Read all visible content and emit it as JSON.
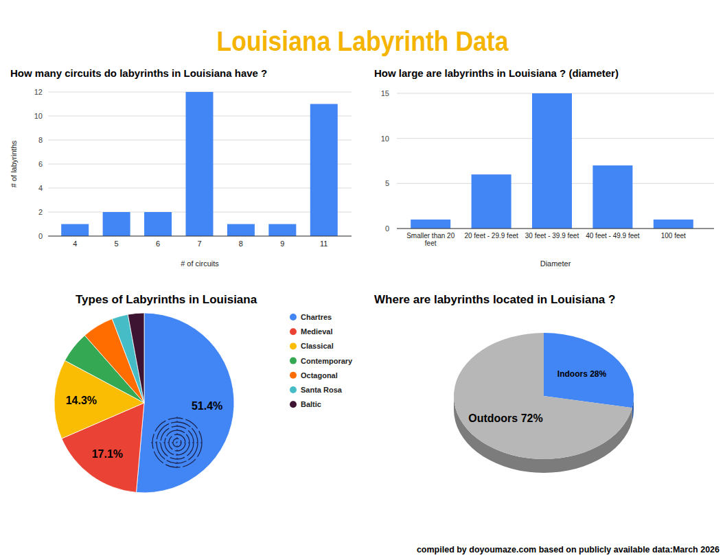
{
  "header": {
    "title": "Louisiana Labyrinth Data"
  },
  "footer": {
    "text": "compiled by doyoumaze.com based on publicly available data:March 2026"
  },
  "chart_data": [
    {
      "type": "bar",
      "title": "How many circuits do labyrinths in Louisiana have ?",
      "x_label": "# of circuits",
      "y_label": "# of labyrinths",
      "categories": [
        "4",
        "5",
        "6",
        "7",
        "8",
        "9",
        "11"
      ],
      "values": [
        1,
        2,
        2,
        12,
        1,
        1,
        11
      ],
      "color": "#4285f4",
      "ylim": [
        0,
        12
      ],
      "yticks": [
        0,
        2,
        4,
        6,
        8,
        10,
        12
      ],
      "grid": true
    },
    {
      "type": "bar",
      "title": "How large are labyrinths in Louisiana ? (diameter)",
      "x_label": "Diameter",
      "categories": [
        "Smaller than 20 feet",
        "20 feet - 29.9 feet",
        "30 feet - 39.9 feet",
        "40 feet - 49.9 feet",
        "100 feet"
      ],
      "values": [
        1,
        6,
        15,
        7,
        1
      ],
      "color": "#4285f4",
      "ylim": [
        0,
        15
      ],
      "yticks": [
        0,
        5,
        10,
        15
      ],
      "grid": true
    },
    {
      "type": "pie",
      "title": "Types of Labyrinths in Louisiana",
      "categories": [
        "Chartres",
        "Medieval",
        "Classical",
        "Contemporary",
        "Octagonal",
        "Santa Rosa",
        "Baltic"
      ],
      "values": [
        51.4,
        17.1,
        14.3,
        5.7,
        5.7,
        2.9,
        2.9
      ],
      "value_labels": [
        "51.4%",
        "17.1%",
        "14.3%",
        null,
        null,
        null,
        null
      ],
      "colors": [
        "#4285f4",
        "#ea4335",
        "#fbbc04",
        "#34a853",
        "#ff6d01",
        "#46bdc6",
        "#3d1431"
      ],
      "legend": "right",
      "data_labels": true
    },
    {
      "type": "pie3d",
      "title": "Where are labyrinths located in Louisiana ?",
      "categories": [
        "Indoors",
        "Outdoors"
      ],
      "values": [
        28,
        72
      ],
      "value_labels": [
        "28%",
        "72%"
      ],
      "colors": [
        "#4285f4",
        "#b7b7b7"
      ],
      "data_labels": true
    }
  ]
}
